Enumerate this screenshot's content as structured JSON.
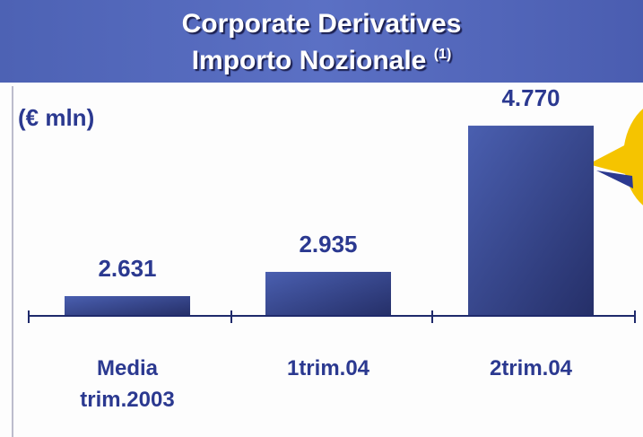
{
  "chart_data": {
    "type": "bar",
    "title": [
      "Corporate Derivatives",
      "Importo Nozionale"
    ],
    "title_note": "(1)",
    "unit_label": "(€ mln)",
    "categories": [
      "Media trim.2003",
      "1trim.04",
      "2trim.04"
    ],
    "values": [
      2631,
      2935,
      4770
    ],
    "value_labels": [
      "2.631",
      "2.935",
      "4.770"
    ],
    "color": "#4a5fb0",
    "ylim": [
      2383,
      5221
    ]
  }
}
